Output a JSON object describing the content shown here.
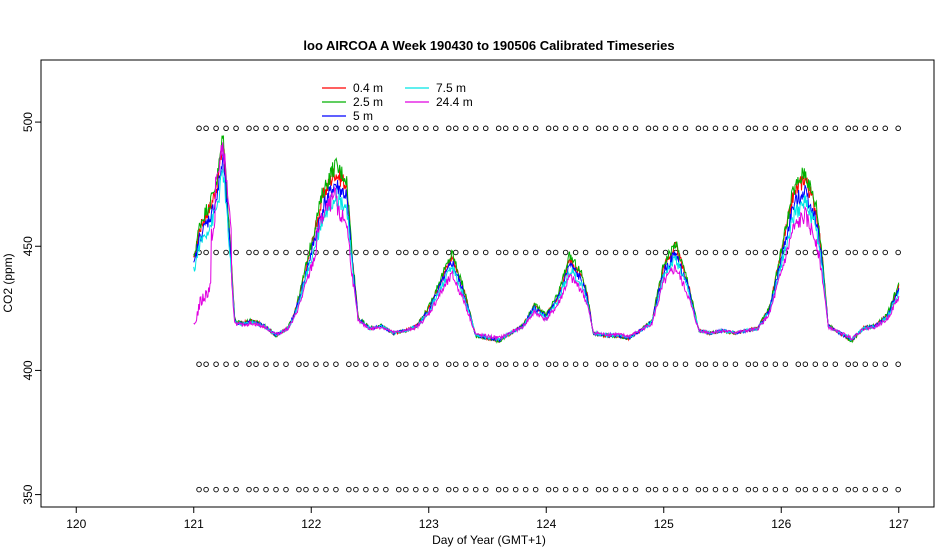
{
  "chart_data": {
    "type": "line",
    "title": "loo AIRCOA A  Week 190430 to 190506  Calibrated Timeseries",
    "xlabel": "Day of Year (GMT+1)",
    "ylabel": "CO2 (ppm)",
    "xlim": [
      119.7,
      127.3
    ],
    "ylim": [
      345,
      525
    ],
    "x_ticks": [
      120,
      121,
      122,
      123,
      124,
      125,
      126,
      127
    ],
    "y_ticks": [
      350,
      400,
      450,
      500
    ],
    "grid": false,
    "legend_position": "top-left",
    "series": [
      {
        "name": "0.4 m",
        "color": "#ff0000"
      },
      {
        "name": "2.5 m",
        "color": "#00b000"
      },
      {
        "name": "5 m",
        "color": "#0000ff"
      },
      {
        "name": "7.5 m",
        "color": "#00e5e5"
      },
      {
        "name": "24.4 m",
        "color": "#e000e0"
      }
    ],
    "base_series": {
      "x": [
        121.0,
        121.05,
        121.1,
        121.15,
        121.2,
        121.25,
        121.3,
        121.35,
        121.4,
        121.5,
        121.6,
        121.7,
        121.8,
        121.85,
        121.9,
        122.0,
        122.1,
        122.2,
        122.3,
        122.35,
        122.4,
        122.5,
        122.6,
        122.7,
        122.8,
        122.9,
        123.0,
        123.1,
        123.2,
        123.3,
        123.4,
        123.5,
        123.6,
        123.7,
        123.8,
        123.9,
        124.0,
        124.1,
        124.2,
        124.3,
        124.35,
        124.4,
        124.5,
        124.6,
        124.7,
        124.8,
        124.9,
        125.0,
        125.1,
        125.2,
        125.3,
        125.4,
        125.5,
        125.6,
        125.7,
        125.8,
        125.9,
        126.0,
        126.1,
        126.2,
        126.3,
        126.35,
        126.4,
        126.5,
        126.6,
        126.7,
        126.8,
        126.9,
        127.0
      ],
      "y": [
        444,
        457,
        462,
        467,
        475,
        492,
        458,
        420,
        419,
        420,
        418,
        414,
        417,
        422,
        430,
        450,
        470,
        480,
        475,
        445,
        421,
        417,
        418,
        415,
        416,
        418,
        425,
        436,
        446,
        432,
        414,
        413,
        412,
        415,
        418,
        426,
        422,
        430,
        445,
        438,
        430,
        415,
        414,
        414,
        413,
        416,
        420,
        442,
        450,
        436,
        416,
        415,
        416,
        415,
        416,
        417,
        425,
        447,
        470,
        478,
        464,
        445,
        418,
        415,
        412,
        417,
        418,
        422,
        434
      ]
    },
    "series_offsets": [
      1.0,
      1.04,
      0.92,
      0.85,
      0.75
    ],
    "markers": {
      "y_levels": [
        352,
        402.5,
        447.5,
        497.5
      ],
      "x_start": 121.02,
      "x_end": 127.0,
      "spacing": 0.085
    }
  }
}
